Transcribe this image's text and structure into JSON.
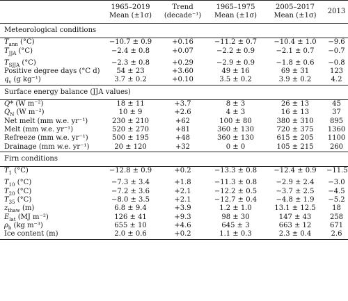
{
  "headers": [
    "",
    "1965–2019 Mean (±1σ)",
    "Trend (decade⁻¹)",
    "1965–1975 Mean (±1σ)",
    "2005–2017 Mean (±1σ)",
    "2013"
  ],
  "sections": [
    {
      "title": "Meteorological conditions",
      "rows": [
        [
          "T_ann (°C)",
          "−10.7 ± 0.9",
          "+0.16",
          "−11.2 ± 0.7",
          "−10.4 ± 1.0",
          "−9.6"
        ],
        [
          "T_JJA (°C)",
          "−2.4 ± 0.8",
          "+0.07",
          "−2.2 ± 0.9",
          "−2.1 ± 0.7",
          "−0.7"
        ],
        [
          "T_SJJA (°C)",
          "−2.3 ± 0.8",
          "+0.29",
          "−2.9 ± 0.9",
          "−1.8 ± 0.6",
          "−0.8"
        ],
        [
          "Positive degree days (°C d)",
          "54 ± 23",
          "+3.60",
          "49 ± 16",
          "69 ± 31",
          "123"
        ],
        [
          "q_v (g kg⁻¹)",
          "3.7 ± 0.2",
          "+0.10",
          "3.5 ± 0.2",
          "3.9 ± 0.2",
          "4.2"
        ]
      ]
    },
    {
      "title": "Surface energy balance (JJA values)",
      "rows": [
        [
          "Q* (W m⁻²)",
          "18 ± 11",
          "+3.7",
          "8 ± 3",
          "26 ± 13",
          "45"
        ],
        [
          "Q_N (W m⁻²)",
          "10 ± 9",
          "+2.6",
          "4 ± 3",
          "16 ± 13",
          "37"
        ],
        [
          "Net melt (mm w.e. yr⁻¹)",
          "230 ± 210",
          "+62",
          "100 ± 80",
          "380 ± 310",
          "895"
        ],
        [
          "Melt (mm w.e. yr⁻¹)",
          "520 ± 270",
          "+81",
          "360 ± 130",
          "720 ± 375",
          "1360"
        ],
        [
          "Refreeze (mm w.e. yr⁻¹)",
          "500 ± 195",
          "+48",
          "360 ± 130",
          "615 ± 205",
          "1100"
        ],
        [
          "Drainage (mm w.e. yr⁻¹)",
          "20 ± 120",
          "+32",
          "0 ± 0",
          "105 ± 215",
          "260"
        ]
      ]
    },
    {
      "title": "Firn conditions",
      "rows": [
        [
          "T_1 (°C)",
          "−12.8 ± 0.9",
          "+0.2",
          "−13.3 ± 0.8",
          "−12.4 ± 0.9",
          "−11.5"
        ],
        [
          "T_10 (°C)",
          "−7.3 ± 3.4",
          "+1.8",
          "−11.3 ± 0.8",
          "−2.9 ± 2.4",
          "−3.0"
        ],
        [
          "T_20 (°C)",
          "−7.2 ± 3.6",
          "+2.1",
          "−12.2 ± 0.5",
          "−3.7 ± 2.5",
          "−4.5"
        ],
        [
          "T_35 (°C)",
          "−8.0 ± 3.5",
          "+2.1",
          "−12.7 ± 0.4",
          "−4.8 ± 1.9",
          "−5.2"
        ],
        [
          "z_thaw (m)",
          "6.8 ± 9.4",
          "+3.9",
          "1.2 ± 1.0",
          "13.1 ± 12.5",
          "18"
        ],
        [
          "E_lat (MJ m⁻²)",
          "126 ± 41",
          "+9.3",
          "98 ± 30",
          "147 ± 43",
          "258"
        ],
        [
          "ρ_b (kg m⁻³)",
          "655 ± 10",
          "+4.6",
          "645 ± 3",
          "663 ± 12",
          "671"
        ],
        [
          "Ice content (m)",
          "2.0 ± 0.6",
          "+0.2",
          "1.1 ± 0.3",
          "2.3 ± 0.4",
          "2.6"
        ]
      ]
    }
  ]
}
